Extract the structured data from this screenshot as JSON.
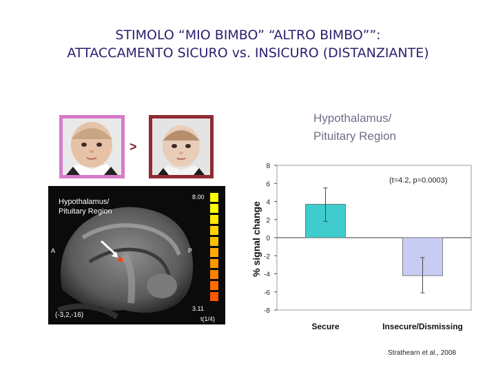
{
  "slide": {
    "title_line1": "STIMOLO “MIO BIMBO” “ALTRO BIMBO””:",
    "title_line2": "ATTACCAMENTO SICURO vs. INSICURO (DISTANZIANTE)",
    "comparison_symbol": ">",
    "panel_title_line1": "Hypothalamus/",
    "panel_title_line2": "Pituitary Region",
    "source": "Strathearn et al., 2008"
  },
  "photos": [
    {
      "frame_color": "#d77ac9"
    },
    {
      "frame_color": "#8f2a33"
    }
  ],
  "mri": {
    "label_line1": "Hypothalamus/",
    "label_line2": "Pituitary Region",
    "coords": "(-3,2,-16)",
    "anterior": "A",
    "posterior": "P",
    "scale_max": "8.00",
    "scale_min": "3.11",
    "scale_label": "t(1/4)",
    "colorbar": [
      "#ffff00",
      "#ffff00",
      "#ffea00",
      "#ffd500",
      "#ffc000",
      "#ffab00",
      "#ff9600",
      "#ff8100",
      "#ff6c00",
      "#ff5700"
    ]
  },
  "chart_data": {
    "type": "bar",
    "title": "",
    "categories": [
      "Secure",
      "Insecure/Dismissing"
    ],
    "values": [
      3.7,
      -4.2
    ],
    "error_low": [
      1.8,
      -6.1
    ],
    "error_high": [
      5.5,
      -2.2
    ],
    "colors": [
      "#40cccc",
      "#c8cbf2"
    ],
    "ylabel": "% signal change",
    "xlabel": "",
    "ylim": [
      -8,
      8
    ],
    "yticks": [
      8,
      6,
      4,
      2,
      0,
      -2,
      -4,
      -6,
      -8
    ],
    "annotation": "(t=4.2, p=0.0003)",
    "grid": false
  }
}
